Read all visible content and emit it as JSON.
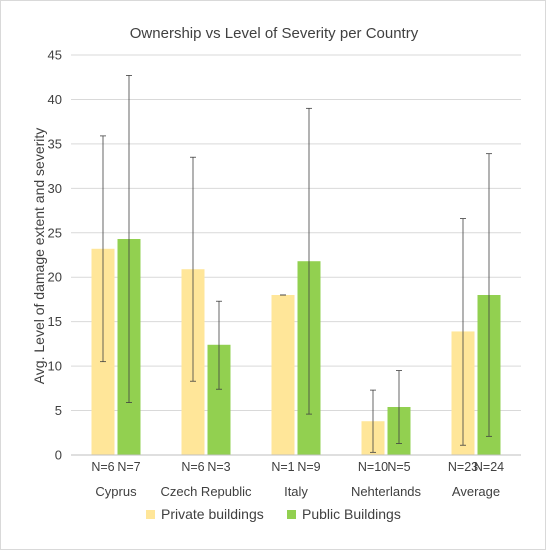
{
  "chart_data": {
    "type": "bar",
    "title": "Ownership vs Level of Severity per Country",
    "ylabel": "Avg. Level of damage extent and severity",
    "xlabel": "",
    "ylim": [
      0,
      45
    ],
    "yticks": [
      0,
      5,
      10,
      15,
      20,
      25,
      30,
      35,
      40,
      45
    ],
    "grid": true,
    "legend_position": "bottom",
    "categories": [
      "Cyprus",
      "Czech Republic",
      "Italy",
      "Nehterlands",
      "Average"
    ],
    "series": [
      {
        "name": "Private buildings",
        "color": "#ffe699",
        "values": [
          23.2,
          20.9,
          18.0,
          3.8,
          13.9
        ],
        "error_low": [
          10.5,
          8.3,
          18.0,
          0.3,
          1.1
        ],
        "error_high": [
          35.9,
          33.5,
          18.0,
          7.3,
          26.6
        ],
        "n_labels": [
          "N=6",
          "N=6",
          "N=1",
          "N=10",
          "N=23"
        ]
      },
      {
        "name": "Public Buildings",
        "color": "#92d050",
        "values": [
          24.3,
          12.4,
          21.8,
          5.4,
          18.0
        ],
        "error_low": [
          5.9,
          7.4,
          4.6,
          1.3,
          2.1
        ],
        "error_high": [
          42.7,
          17.3,
          39.0,
          9.5,
          33.9
        ],
        "n_labels": [
          "N=7",
          "N=3",
          "N=9",
          "N=5",
          "N=24"
        ]
      }
    ]
  }
}
